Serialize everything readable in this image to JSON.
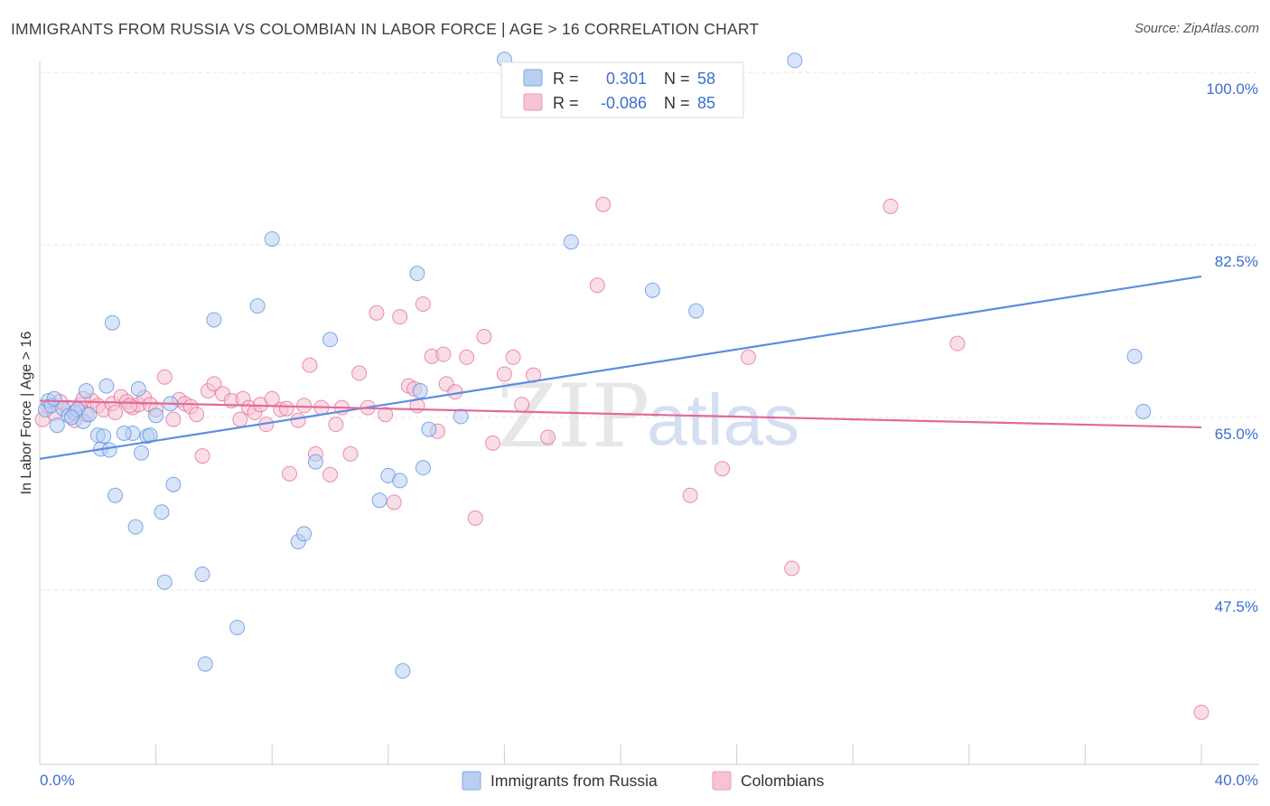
{
  "title": "IMMIGRANTS FROM RUSSIA VS COLOMBIAN IN LABOR FORCE | AGE > 16 CORRELATION CHART",
  "source": "Source: ZipAtlas.com",
  "watermark": {
    "zip": "ZIP",
    "atlas": "atlas"
  },
  "legend": {
    "r_label": "R =",
    "n_label": "N =",
    "rows": [
      {
        "r": "0.301",
        "n": "58",
        "color": "#8fb4ea"
      },
      {
        "r": "-0.086",
        "n": "85",
        "color": "#f4a7be"
      }
    ]
  },
  "chart_data": {
    "type": "scatter",
    "title": "IMMIGRANTS FROM RUSSIA VS COLOMBIAN IN LABOR FORCE | AGE > 16 CORRELATION CHART",
    "xlabel": "",
    "ylabel": "In Labor Force | Age > 16",
    "xlim": [
      0,
      40
    ],
    "ylim": [
      32,
      101.5
    ],
    "x_tick_labels": [
      "0.0%",
      "40.0%"
    ],
    "y_ticks": [
      100,
      82.5,
      65,
      47.5
    ],
    "y_tick_labels": [
      "100.0%",
      "82.5%",
      "65.0%",
      "47.5%"
    ],
    "grid": true,
    "legend_position": "top-center",
    "series": [
      {
        "name": "Immigrants from Russia",
        "color": "#5b8ee0",
        "fill": "#b8cff2",
        "trend": {
          "x": [
            0,
            40
          ],
          "y": [
            60.8,
            79.3
          ]
        },
        "points": [
          [
            0.2,
            65.8
          ],
          [
            0.3,
            66.7
          ],
          [
            0.4,
            66.2
          ],
          [
            0.5,
            66.9
          ],
          [
            0.6,
            64.2
          ],
          [
            0.8,
            65.9
          ],
          [
            1.0,
            65.2
          ],
          [
            1.2,
            65.5
          ],
          [
            1.3,
            65.8
          ],
          [
            1.5,
            64.6
          ],
          [
            1.6,
            67.7
          ],
          [
            1.7,
            65.3
          ],
          [
            2.0,
            63.2
          ],
          [
            2.1,
            61.8
          ],
          [
            2.2,
            63.1
          ],
          [
            2.4,
            61.7
          ],
          [
            2.3,
            68.2
          ],
          [
            2.6,
            57.1
          ],
          [
            2.5,
            74.6
          ],
          [
            3.2,
            63.4
          ],
          [
            2.9,
            63.4
          ],
          [
            3.3,
            53.9
          ],
          [
            3.5,
            61.4
          ],
          [
            3.4,
            67.9
          ],
          [
            3.7,
            63.1
          ],
          [
            3.8,
            63.2
          ],
          [
            4.0,
            65.2
          ],
          [
            4.2,
            55.4
          ],
          [
            4.3,
            48.3
          ],
          [
            4.5,
            66.4
          ],
          [
            4.6,
            58.2
          ],
          [
            5.6,
            49.1
          ],
          [
            5.7,
            40.0
          ],
          [
            6.0,
            74.9
          ],
          [
            6.8,
            43.7
          ],
          [
            7.5,
            76.3
          ],
          [
            8.0,
            83.1
          ],
          [
            8.9,
            52.4
          ],
          [
            9.1,
            53.2
          ],
          [
            9.5,
            60.5
          ],
          [
            10.0,
            72.9
          ],
          [
            11.7,
            56.6
          ],
          [
            12.0,
            59.1
          ],
          [
            12.4,
            58.6
          ],
          [
            12.5,
            39.3
          ],
          [
            13.0,
            79.6
          ],
          [
            13.2,
            59.9
          ],
          [
            13.1,
            67.7
          ],
          [
            13.4,
            63.8
          ],
          [
            14.5,
            65.1
          ],
          [
            16.0,
            101.3
          ],
          [
            18.3,
            82.8
          ],
          [
            21.1,
            77.9
          ],
          [
            26.0,
            101.2
          ],
          [
            37.7,
            71.2
          ],
          [
            38.0,
            65.6
          ],
          [
            22.6,
            75.8
          ],
          [
            1.1,
            65.0
          ]
        ]
      },
      {
        "name": "Colombians",
        "color": "#e36a97",
        "fill": "#f6c3d3",
        "trend": {
          "x": [
            0,
            40
          ],
          "y": [
            66.7,
            64.0
          ]
        },
        "points": [
          [
            0.1,
            64.8
          ],
          [
            0.3,
            66.1
          ],
          [
            0.5,
            65.4
          ],
          [
            0.7,
            66.6
          ],
          [
            1.0,
            66.0
          ],
          [
            1.2,
            64.7
          ],
          [
            1.4,
            66.3
          ],
          [
            1.6,
            65.3
          ],
          [
            1.8,
            66.7
          ],
          [
            2.0,
            66.2
          ],
          [
            2.2,
            65.8
          ],
          [
            2.5,
            66.4
          ],
          [
            2.8,
            67.1
          ],
          [
            3.0,
            66.6
          ],
          [
            3.2,
            66.0
          ],
          [
            3.4,
            66.3
          ],
          [
            3.6,
            67.0
          ],
          [
            3.8,
            66.3
          ],
          [
            4.0,
            65.8
          ],
          [
            4.3,
            69.1
          ],
          [
            4.6,
            64.8
          ],
          [
            4.8,
            66.8
          ],
          [
            5.0,
            66.4
          ],
          [
            5.2,
            66.1
          ],
          [
            5.4,
            65.3
          ],
          [
            5.6,
            61.1
          ],
          [
            5.8,
            67.7
          ],
          [
            6.0,
            68.4
          ],
          [
            6.3,
            67.4
          ],
          [
            6.6,
            66.7
          ],
          [
            6.9,
            64.8
          ],
          [
            7.0,
            66.9
          ],
          [
            7.2,
            66.0
          ],
          [
            7.4,
            65.5
          ],
          [
            7.6,
            66.3
          ],
          [
            7.8,
            64.3
          ],
          [
            8.0,
            66.9
          ],
          [
            8.3,
            65.8
          ],
          [
            8.6,
            59.3
          ],
          [
            8.9,
            64.7
          ],
          [
            9.1,
            66.2
          ],
          [
            9.3,
            70.3
          ],
          [
            9.5,
            61.3
          ],
          [
            9.7,
            66.0
          ],
          [
            10.0,
            59.2
          ],
          [
            10.2,
            64.3
          ],
          [
            10.4,
            66.0
          ],
          [
            10.7,
            61.3
          ],
          [
            11.0,
            69.5
          ],
          [
            11.3,
            66.0
          ],
          [
            11.6,
            75.6
          ],
          [
            11.9,
            65.3
          ],
          [
            12.2,
            56.4
          ],
          [
            12.4,
            75.2
          ],
          [
            12.7,
            68.2
          ],
          [
            13.0,
            66.2
          ],
          [
            13.2,
            76.5
          ],
          [
            13.5,
            71.2
          ],
          [
            13.7,
            63.6
          ],
          [
            13.9,
            71.4
          ],
          [
            14.0,
            68.4
          ],
          [
            14.3,
            67.6
          ],
          [
            14.7,
            71.1
          ],
          [
            15.0,
            54.8
          ],
          [
            15.3,
            73.2
          ],
          [
            15.6,
            62.4
          ],
          [
            16.0,
            69.4
          ],
          [
            16.3,
            71.1
          ],
          [
            16.6,
            66.3
          ],
          [
            17.0,
            69.3
          ],
          [
            17.5,
            63.0
          ],
          [
            19.2,
            78.4
          ],
          [
            19.4,
            86.6
          ],
          [
            22.4,
            57.1
          ],
          [
            23.5,
            59.8
          ],
          [
            24.4,
            71.1
          ],
          [
            25.9,
            49.7
          ],
          [
            29.3,
            86.4
          ],
          [
            31.6,
            72.5
          ],
          [
            40.0,
            35.1
          ],
          [
            12.9,
            67.9
          ],
          [
            3.1,
            66.2
          ],
          [
            1.5,
            66.9
          ],
          [
            8.5,
            65.9
          ],
          [
            2.6,
            65.5
          ]
        ]
      }
    ]
  }
}
